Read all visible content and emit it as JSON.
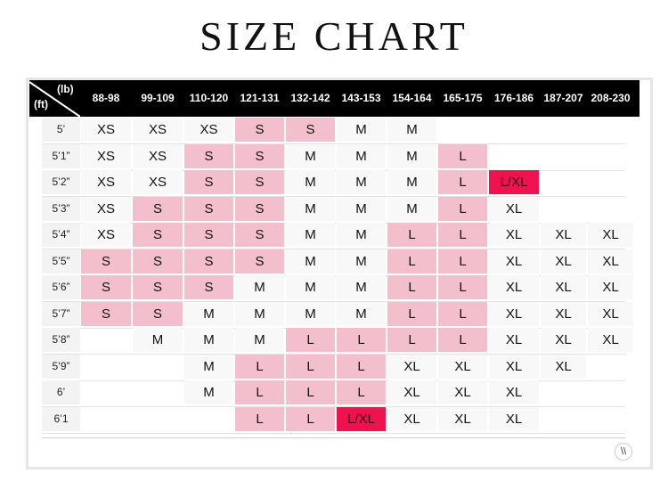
{
  "title": "SIZE CHART",
  "header": {
    "weight_unit": "(lb)",
    "height_unit": "(ft)",
    "columns": [
      "88-98",
      "99-109",
      "110-120",
      "121-131",
      "132-142",
      "143-153",
      "154-164",
      "165-175",
      "176-186",
      "187-207",
      "208-230"
    ]
  },
  "colors": {
    "pink": "#f4bfcd",
    "hot": "#f0124f",
    "header": "#000000"
  },
  "logo": "\\\\",
  "rows": [
    {
      "height": "5’",
      "cells": [
        {
          "v": "XS"
        },
        {
          "v": "XS"
        },
        {
          "v": "XS"
        },
        {
          "v": "S",
          "c": "pink"
        },
        {
          "v": "S",
          "c": "pink"
        },
        {
          "v": "M"
        },
        {
          "v": "M"
        },
        {
          "v": ""
        },
        {
          "v": ""
        },
        {
          "v": ""
        },
        {
          "v": ""
        }
      ]
    },
    {
      "height": "5’1”",
      "cells": [
        {
          "v": "XS"
        },
        {
          "v": "XS"
        },
        {
          "v": "S",
          "c": "pink"
        },
        {
          "v": "S",
          "c": "pink"
        },
        {
          "v": "M"
        },
        {
          "v": "M"
        },
        {
          "v": "M"
        },
        {
          "v": "L",
          "c": "pink"
        },
        {
          "v": ""
        },
        {
          "v": ""
        },
        {
          "v": ""
        }
      ]
    },
    {
      "height": "5’2”",
      "cells": [
        {
          "v": "XS"
        },
        {
          "v": "XS"
        },
        {
          "v": "S",
          "c": "pink"
        },
        {
          "v": "S",
          "c": "pink"
        },
        {
          "v": "M"
        },
        {
          "v": "M"
        },
        {
          "v": "M"
        },
        {
          "v": "L",
          "c": "pink"
        },
        {
          "v": "L/XL",
          "c": "hot"
        },
        {
          "v": ""
        },
        {
          "v": ""
        }
      ]
    },
    {
      "height": "5’3”",
      "cells": [
        {
          "v": "XS"
        },
        {
          "v": "S",
          "c": "pink"
        },
        {
          "v": "S",
          "c": "pink"
        },
        {
          "v": "S",
          "c": "pink"
        },
        {
          "v": "M"
        },
        {
          "v": "M"
        },
        {
          "v": "M"
        },
        {
          "v": "L",
          "c": "pink"
        },
        {
          "v": "XL"
        },
        {
          "v": ""
        },
        {
          "v": ""
        }
      ]
    },
    {
      "height": "5’4”",
      "cells": [
        {
          "v": "XS"
        },
        {
          "v": "S",
          "c": "pink"
        },
        {
          "v": "S",
          "c": "pink"
        },
        {
          "v": "S",
          "c": "pink"
        },
        {
          "v": "M"
        },
        {
          "v": "M"
        },
        {
          "v": "L",
          "c": "pink"
        },
        {
          "v": "L",
          "c": "pink"
        },
        {
          "v": "XL"
        },
        {
          "v": "XL"
        },
        {
          "v": "XL"
        }
      ]
    },
    {
      "height": "5’5”",
      "cells": [
        {
          "v": "S",
          "c": "pink"
        },
        {
          "v": "S",
          "c": "pink"
        },
        {
          "v": "S",
          "c": "pink"
        },
        {
          "v": "S",
          "c": "pink"
        },
        {
          "v": "M"
        },
        {
          "v": "M"
        },
        {
          "v": "L",
          "c": "pink"
        },
        {
          "v": "L",
          "c": "pink"
        },
        {
          "v": "XL"
        },
        {
          "v": "XL"
        },
        {
          "v": "XL"
        }
      ]
    },
    {
      "height": "5’6”",
      "cells": [
        {
          "v": "S",
          "c": "pink"
        },
        {
          "v": "S",
          "c": "pink"
        },
        {
          "v": "S",
          "c": "pink"
        },
        {
          "v": "M"
        },
        {
          "v": "M"
        },
        {
          "v": "M"
        },
        {
          "v": "L",
          "c": "pink"
        },
        {
          "v": "L",
          "c": "pink"
        },
        {
          "v": "XL"
        },
        {
          "v": "XL"
        },
        {
          "v": "XL"
        }
      ]
    },
    {
      "height": "5’7”",
      "cells": [
        {
          "v": "S",
          "c": "pink"
        },
        {
          "v": "S",
          "c": "pink"
        },
        {
          "v": "M"
        },
        {
          "v": "M"
        },
        {
          "v": "M"
        },
        {
          "v": "M"
        },
        {
          "v": "L",
          "c": "pink"
        },
        {
          "v": "L",
          "c": "pink"
        },
        {
          "v": "XL"
        },
        {
          "v": "XL"
        },
        {
          "v": "XL"
        }
      ]
    },
    {
      "height": "5’8”",
      "cells": [
        {
          "v": ""
        },
        {
          "v": "M"
        },
        {
          "v": "M"
        },
        {
          "v": "M"
        },
        {
          "v": "L",
          "c": "pink"
        },
        {
          "v": "L",
          "c": "pink"
        },
        {
          "v": "L",
          "c": "pink"
        },
        {
          "v": "L",
          "c": "pink"
        },
        {
          "v": "XL"
        },
        {
          "v": "XL"
        },
        {
          "v": "XL"
        }
      ]
    },
    {
      "height": "5’9”",
      "cells": [
        {
          "v": ""
        },
        {
          "v": ""
        },
        {
          "v": "M"
        },
        {
          "v": "L",
          "c": "pink"
        },
        {
          "v": "L",
          "c": "pink"
        },
        {
          "v": "L",
          "c": "pink"
        },
        {
          "v": "XL"
        },
        {
          "v": "XL"
        },
        {
          "v": "XL"
        },
        {
          "v": "XL"
        },
        {
          "v": ""
        }
      ]
    },
    {
      "height": "6’",
      "cells": [
        {
          "v": ""
        },
        {
          "v": ""
        },
        {
          "v": "M"
        },
        {
          "v": "L",
          "c": "pink"
        },
        {
          "v": "L",
          "c": "pink"
        },
        {
          "v": "L",
          "c": "pink"
        },
        {
          "v": "XL"
        },
        {
          "v": "XL"
        },
        {
          "v": "XL"
        },
        {
          "v": ""
        },
        {
          "v": ""
        }
      ]
    },
    {
      "height": "6’1",
      "cells": [
        {
          "v": ""
        },
        {
          "v": ""
        },
        {
          "v": ""
        },
        {
          "v": "L",
          "c": "pink"
        },
        {
          "v": "L",
          "c": "pink"
        },
        {
          "v": "L/XL",
          "c": "hot"
        },
        {
          "v": "XL"
        },
        {
          "v": "XL"
        },
        {
          "v": "XL"
        },
        {
          "v": ""
        },
        {
          "v": ""
        }
      ]
    }
  ]
}
